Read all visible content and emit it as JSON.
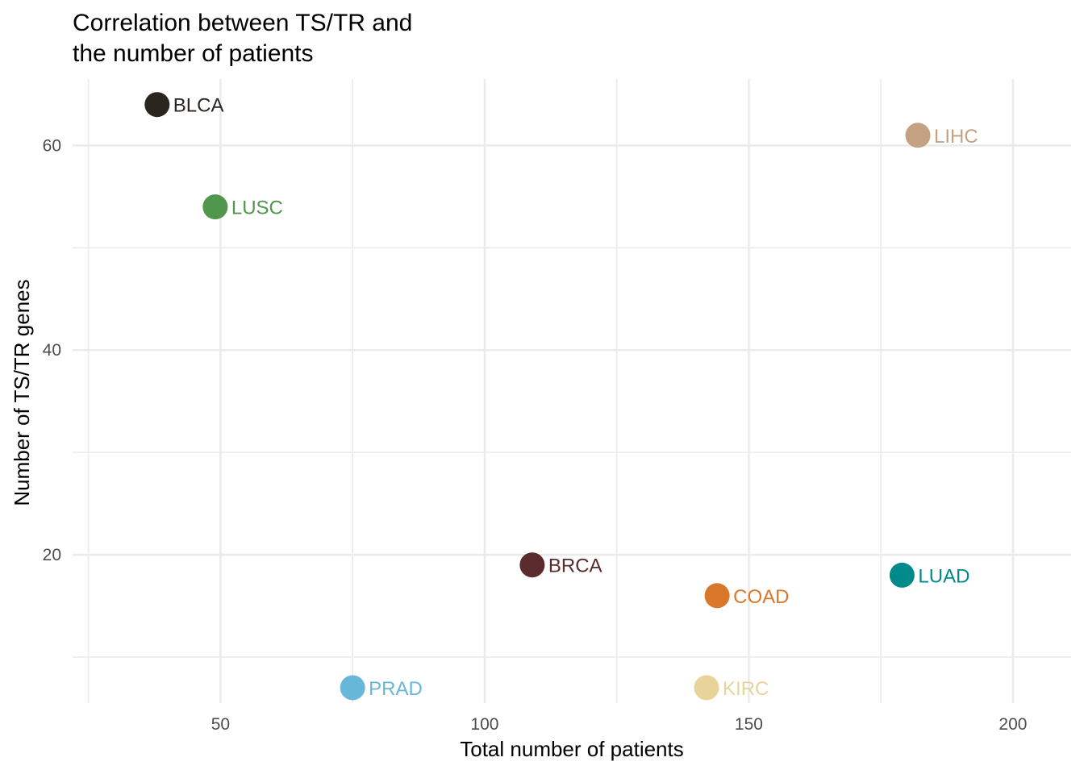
{
  "chart_data": {
    "type": "scatter",
    "title": [
      "Correlation between TS/TR and",
      "the number of patients"
    ],
    "xlabel": "Total number of patients",
    "ylabel": "Number of TS/TR genes",
    "xlim": [
      22,
      211
    ],
    "ylim": [
      5.5,
      66.5
    ],
    "x_ticks": [
      {
        "value": 50,
        "label": "50"
      },
      {
        "value": 100,
        "label": "100"
      },
      {
        "value": 150,
        "label": "150"
      },
      {
        "value": 200,
        "label": "200"
      }
    ],
    "y_ticks": [
      {
        "value": 20,
        "label": "20"
      },
      {
        "value": 40,
        "label": "40"
      },
      {
        "value": 60,
        "label": "60"
      }
    ],
    "x_minor_ticks": [
      25,
      75,
      125,
      175
    ],
    "y_minor_ticks": [
      10,
      30,
      50
    ],
    "grid": true,
    "legend": "none",
    "points": [
      {
        "label": "BLCA",
        "x": 38,
        "y": 64,
        "color": "#2b2520"
      },
      {
        "label": "LIHC",
        "x": 182,
        "y": 61,
        "color": "#c4a183"
      },
      {
        "label": "LUSC",
        "x": 49,
        "y": 54,
        "color": "#50964c"
      },
      {
        "label": "BRCA",
        "x": 109,
        "y": 19,
        "color": "#5a2a2c"
      },
      {
        "label": "LUAD",
        "x": 179,
        "y": 18,
        "color": "#008b8a"
      },
      {
        "label": "COAD",
        "x": 144,
        "y": 16,
        "color": "#d9782a"
      },
      {
        "label": "PRAD",
        "x": 75,
        "y": 7,
        "color": "#67b8d8"
      },
      {
        "label": "KIRC",
        "x": 142,
        "y": 7,
        "color": "#e8d39a"
      }
    ]
  }
}
